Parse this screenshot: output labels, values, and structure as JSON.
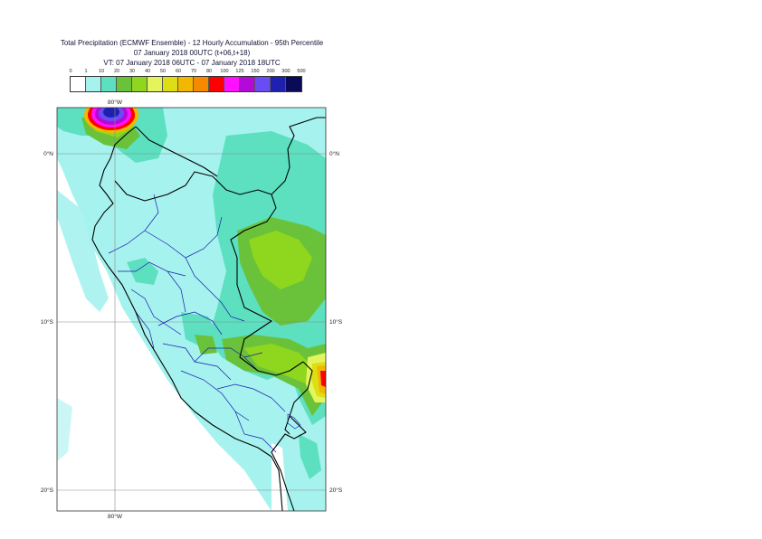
{
  "title": {
    "line1": "Total Precipitation (ECMWF Ensemble) - 12 Hourly Accumulation - 95th Percentile",
    "line2": "07 January 2018 00UTC (t+06,t+18)",
    "line3": "VT: 07 January 2018 06UTC - 07 January 2018 18UTC"
  },
  "legend": {
    "ticks": [
      "0",
      "1",
      "10",
      "20",
      "30",
      "40",
      "50",
      "60",
      "70",
      "80",
      "100",
      "125",
      "150",
      "200",
      "300",
      "500"
    ],
    "colors": [
      "#ffffff",
      "#a6f2ee",
      "#5de0c0",
      "#69c23a",
      "#8fd71f",
      "#e4f55b",
      "#dede14",
      "#f2b800",
      "#f58a00",
      "#ff0000",
      "#ff10ff",
      "#b40ad8",
      "#6a4cf5",
      "#2020b0",
      "#0a0a58"
    ]
  },
  "axes": {
    "lon_top": "80°W",
    "lon_bottom": "80°W",
    "lat": [
      "0°N",
      "10°S",
      "20°S"
    ]
  }
}
